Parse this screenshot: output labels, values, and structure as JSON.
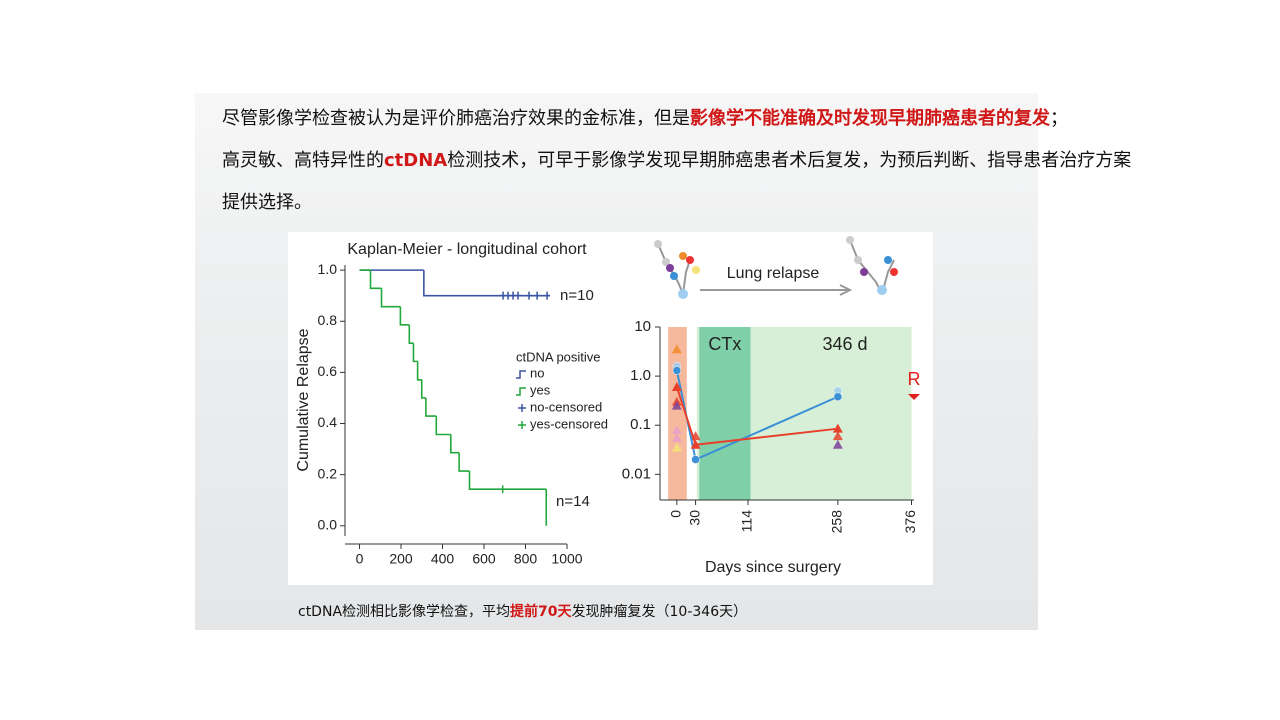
{
  "header": {
    "lines": [
      [
        {
          "text": "尽管影像学检查被认为是评价肺癌治疗效果的金标准，但是"
        },
        {
          "text": "影像学不能准确及时发现早期肺癌患者的复发",
          "color": "#d01818"
        },
        {
          "text": "；"
        }
      ],
      [
        {
          "text": "高灵敏、高特异性的"
        },
        {
          "text": "ctDNA",
          "color": "#d01818"
        },
        {
          "text": "检测技术，可早于影像学发现早期肺癌患者术后复发，为预后判断、指导患者治疗方案"
        }
      ],
      [
        {
          "text": "提供选择。"
        }
      ]
    ]
  },
  "caption": [
    {
      "text": "ctDNA检测相比影像学检查，平均"
    },
    {
      "text": "提前70天",
      "color": "#d01818"
    },
    {
      "text": "发现肿瘤复发（10-346天）"
    }
  ],
  "chart_data": [
    {
      "type": "step",
      "title": "Kaplan-Meier - longitudinal cohort",
      "ylabel": "Cumulative Relapse",
      "xlim": [
        -70,
        1000
      ],
      "ylim": [
        -0.04,
        1.02
      ],
      "xticks": [
        0,
        200,
        400,
        600,
        800,
        1000
      ],
      "yticks": [
        {
          "value": 0,
          "label": "0.0"
        },
        {
          "value": 0.2,
          "label": "0.2"
        },
        {
          "value": 0.4,
          "label": "0.4"
        },
        {
          "value": 0.6,
          "label": "0.6"
        },
        {
          "value": 0.8,
          "label": "0.8"
        },
        {
          "value": 1,
          "label": "1.0"
        }
      ],
      "legend_title": "ctDNA positive",
      "series": [
        {
          "name": "no",
          "color": "#3a53a4",
          "x": [
            0,
            310,
            918
          ],
          "values": [
            1,
            0.9,
            0.9
          ]
        },
        {
          "name": "yes",
          "color": "#22a83c",
          "x": [
            0,
            53,
            106,
            197,
            240,
            260,
            280,
            300,
            320,
            370,
            440,
            480,
            530,
            900
          ],
          "values": [
            1,
            0.929,
            0.857,
            0.786,
            0.714,
            0.643,
            0.571,
            0.5,
            0.429,
            0.357,
            0.286,
            0.214,
            0.143,
            0
          ]
        },
        {
          "name": "no-censored",
          "color": "#3a53a4",
          "marker": "+",
          "x": [
            692,
            716,
            740,
            764,
            817,
            856,
            904
          ],
          "values": [
            0.9,
            0.9,
            0.9,
            0.9,
            0.9,
            0.9,
            0.9
          ]
        },
        {
          "name": "yes-censored",
          "color": "#22a83c",
          "marker": "+",
          "x": [
            690
          ],
          "values": [
            0.143
          ]
        }
      ],
      "annotations": [
        "n=10",
        "n=14"
      ]
    },
    {
      "type": "line",
      "xlabel": "Days since surgery",
      "yscale": "log",
      "xlim": [
        -27,
        380
      ],
      "ylim": [
        0.003,
        10
      ],
      "xticks": [
        0,
        30,
        114,
        258,
        376
      ],
      "yticks": [
        0.01,
        0.1,
        {
          "value": 1,
          "label": "1.0"
        },
        10
      ],
      "regions": [
        {
          "x": [
            32,
            376
          ],
          "color": "#d6efd6"
        },
        {
          "x": [
            36,
            118
          ],
          "color": "#7fcfa8"
        },
        {
          "x": [
            -14,
            16
          ],
          "color": "#f7b99c"
        }
      ],
      "region_labels": [
        "CTx",
        "346 d"
      ],
      "relapse_label": "Lung relapse",
      "marker_label": "R",
      "series": [
        {
          "color": "#3a8fd6",
          "marker": "circle",
          "x": [
            0,
            30,
            258
          ],
          "values": [
            1.3,
            0.02,
            0.38
          ]
        },
        {
          "color": "#e8402c",
          "marker": "triangle",
          "x": [
            0,
            30,
            258
          ],
          "values": [
            0.6,
            0.04,
            0.085
          ]
        }
      ],
      "points": [
        {
          "color": "#f08a2a",
          "marker": "triangle",
          "x": 0,
          "value": 3.5
        },
        {
          "color": "#9fcdf0",
          "marker": "circle",
          "x": 0,
          "value": 1.6
        },
        {
          "color": "#e8402c",
          "marker": "triangle",
          "x": 0,
          "value": 0.3
        },
        {
          "color": "#7b3f9b",
          "marker": "triangle",
          "x": 0,
          "value": 0.25
        },
        {
          "color": "#e8a0c8",
          "marker": "triangle",
          "x": 0,
          "value": 0.08
        },
        {
          "color": "#e8a0c8",
          "marker": "triangle",
          "x": 0,
          "value": 0.055
        },
        {
          "color": "#f5e27a",
          "marker": "triangle",
          "x": 0,
          "value": 0.035
        },
        {
          "color": "#e8402c",
          "marker": "triangle",
          "x": 30,
          "value": 0.06
        },
        {
          "color": "#9fcdf0",
          "marker": "circle",
          "x": 258,
          "value": 0.5
        },
        {
          "color": "#e8402c",
          "marker": "triangle",
          "x": 258,
          "value": 0.06
        },
        {
          "color": "#7b3f9b",
          "marker": "triangle",
          "x": 258,
          "value": 0.04
        }
      ]
    }
  ]
}
